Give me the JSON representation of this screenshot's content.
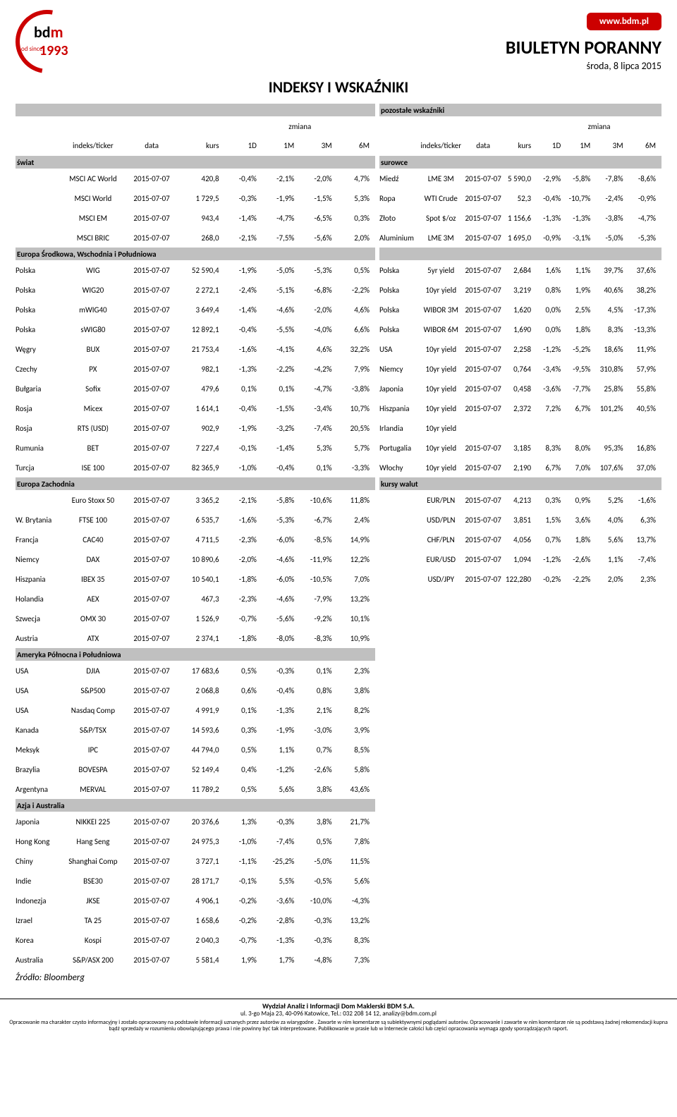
{
  "hdr": {
    "url": "www.bdm.pl",
    "title": "BIULETYN PORANNY",
    "date": "środa, 8 lipca 2015",
    "section": "INDEKSY I WSKAŹNIKI",
    "logo_bdm_b": "bd",
    "logo_bdm_m": "m",
    "logo_od": "od\nsince",
    "logo_year": "1993"
  },
  "cols": {
    "zmiana": "zmiana",
    "c0": "indeks/ticker",
    "c1": "data",
    "c2": "kurs",
    "c3": "1D",
    "c4": "1M",
    "c5": "3M",
    "c6": "6M",
    "r_title": "pozostałe wskaźniki"
  },
  "left_sections": [
    {
      "name": "świat",
      "rows": [
        [
          "",
          "MSCI AC World",
          "2015-07-07",
          "420,8",
          "-0,4%",
          "-2,1%",
          "-2,0%",
          "4,7%"
        ],
        [
          "",
          "MSCI World",
          "2015-07-07",
          "1 729,5",
          "-0,3%",
          "-1,9%",
          "-1,5%",
          "5,3%"
        ],
        [
          "",
          "MSCI EM",
          "2015-07-07",
          "943,4",
          "-1,4%",
          "-4,7%",
          "-6,5%",
          "0,3%"
        ],
        [
          "",
          "MSCI BRIC",
          "2015-07-07",
          "268,0",
          "-2,1%",
          "-7,5%",
          "-5,6%",
          "2,0%"
        ]
      ]
    },
    {
      "name": "Europa Środkowa, Wschodnia i Południowa",
      "rows": [
        [
          "Polska",
          "WIG",
          "2015-07-07",
          "52 590,4",
          "-1,9%",
          "-5,0%",
          "-5,3%",
          "0,5%"
        ],
        [
          "Polska",
          "WIG20",
          "2015-07-07",
          "2 272,1",
          "-2,4%",
          "-5,1%",
          "-6,8%",
          "-2,2%"
        ],
        [
          "Polska",
          "mWIG40",
          "2015-07-07",
          "3 649,4",
          "-1,4%",
          "-4,6%",
          "-2,0%",
          "4,6%"
        ],
        [
          "Polska",
          "sWIG80",
          "2015-07-07",
          "12 892,1",
          "-0,4%",
          "-5,5%",
          "-4,0%",
          "6,6%"
        ],
        [
          "Węgry",
          "BUX",
          "2015-07-07",
          "21 753,4",
          "-1,6%",
          "-4,1%",
          "4,6%",
          "32,2%"
        ],
        [
          "Czechy",
          "PX",
          "2015-07-07",
          "982,1",
          "-1,3%",
          "-2,2%",
          "-4,2%",
          "7,9%"
        ],
        [
          "Bułgaria",
          "Sofix",
          "2015-07-07",
          "479,6",
          "0,1%",
          "0,1%",
          "-4,7%",
          "-3,8%"
        ],
        [
          "Rosja",
          "Micex",
          "2015-07-07",
          "1 614,1",
          "-0,4%",
          "-1,5%",
          "-3,4%",
          "10,7%"
        ],
        [
          "Rosja",
          "RTS (USD)",
          "2015-07-07",
          "902,9",
          "-1,9%",
          "-3,2%",
          "-7,4%",
          "20,5%"
        ],
        [
          "Rumunia",
          "BET",
          "2015-07-07",
          "7 227,4",
          "-0,1%",
          "-1,4%",
          "5,3%",
          "5,7%"
        ],
        [
          "Turcja",
          "ISE 100",
          "2015-07-07",
          "82 365,9",
          "-1,0%",
          "-0,4%",
          "0,1%",
          "-3,3%"
        ]
      ]
    },
    {
      "name": "Europa Zachodnia",
      "rows": [
        [
          "",
          "Euro Stoxx 50",
          "2015-07-07",
          "3 365,2",
          "-2,1%",
          "-5,8%",
          "-10,6%",
          "11,8%"
        ],
        [
          "W. Brytania",
          "FTSE 100",
          "2015-07-07",
          "6 535,7",
          "-1,6%",
          "-5,3%",
          "-6,7%",
          "2,4%"
        ],
        [
          "Francja",
          "CAC40",
          "2015-07-07",
          "4 711,5",
          "-2,3%",
          "-6,0%",
          "-8,5%",
          "14,9%"
        ],
        [
          "Niemcy",
          "DAX",
          "2015-07-07",
          "10 890,6",
          "-2,0%",
          "-4,6%",
          "-11,9%",
          "12,2%"
        ],
        [
          "Hiszpania",
          "IBEX 35",
          "2015-07-07",
          "10 540,1",
          "-1,8%",
          "-6,0%",
          "-10,5%",
          "7,0%"
        ],
        [
          "Holandia",
          "AEX",
          "2015-07-07",
          "467,3",
          "-2,3%",
          "-4,6%",
          "-7,9%",
          "13,2%"
        ],
        [
          "Szwecja",
          "OMX 30",
          "2015-07-07",
          "1 526,9",
          "-0,7%",
          "-5,6%",
          "-9,2%",
          "10,1%"
        ],
        [
          "Austria",
          "ATX",
          "2015-07-07",
          "2 374,1",
          "-1,8%",
          "-8,0%",
          "-8,3%",
          "10,9%"
        ]
      ]
    },
    {
      "name": "Ameryka Północna i Południowa",
      "rows": [
        [
          "USA",
          "DJIA",
          "2015-07-07",
          "17 683,6",
          "0,5%",
          "-0,3%",
          "0,1%",
          "2,3%"
        ],
        [
          "USA",
          "S&P500",
          "2015-07-07",
          "2 068,8",
          "0,6%",
          "-0,4%",
          "0,8%",
          "3,8%"
        ],
        [
          "USA",
          "Nasdaq Comp",
          "2015-07-07",
          "4 991,9",
          "0,1%",
          "-1,3%",
          "2,1%",
          "8,2%"
        ],
        [
          "Kanada",
          "S&P/TSX",
          "2015-07-07",
          "14 593,6",
          "0,3%",
          "-1,9%",
          "-3,0%",
          "3,9%"
        ],
        [
          "Meksyk",
          "IPC",
          "2015-07-07",
          "44 794,0",
          "0,5%",
          "1,1%",
          "0,7%",
          "8,5%"
        ],
        [
          "Brazylia",
          "BOVESPA",
          "2015-07-07",
          "52 149,4",
          "0,4%",
          "-1,2%",
          "-2,6%",
          "5,8%"
        ],
        [
          "Argentyna",
          "MERVAL",
          "2015-07-07",
          "11 789,2",
          "0,5%",
          "5,6%",
          "3,8%",
          "43,6%"
        ]
      ]
    },
    {
      "name": "Azja i Australia",
      "rows": [
        [
          "Japonia",
          "NIKKEI 225",
          "2015-07-07",
          "20 376,6",
          "1,3%",
          "-0,3%",
          "3,8%",
          "21,7%"
        ],
        [
          "Hong Kong",
          "Hang Seng",
          "2015-07-07",
          "24 975,3",
          "-1,0%",
          "-7,4%",
          "0,5%",
          "7,8%"
        ],
        [
          "Chiny",
          "Shanghai Comp",
          "2015-07-07",
          "3 727,1",
          "-1,1%",
          "-25,2%",
          "-5,0%",
          "11,5%"
        ],
        [
          "Indie",
          "BSE30",
          "2015-07-07",
          "28 171,7",
          "-0,1%",
          "5,5%",
          "-0,5%",
          "5,6%"
        ],
        [
          "Indonezja",
          "JKSE",
          "2015-07-07",
          "4 906,1",
          "-0,2%",
          "-3,6%",
          "-10,0%",
          "-4,3%"
        ],
        [
          "Izrael",
          "TA 25",
          "2015-07-07",
          "1 658,6",
          "-0,2%",
          "-2,8%",
          "-0,3%",
          "13,2%"
        ],
        [
          "Korea",
          "Kospi",
          "2015-07-07",
          "2 040,3",
          "-0,7%",
          "-1,3%",
          "-0,3%",
          "8,3%"
        ],
        [
          "Australia",
          "S&P/ASX 200",
          "2015-07-07",
          "5 581,4",
          "1,9%",
          "1,7%",
          "-4,8%",
          "7,3%"
        ]
      ]
    }
  ],
  "right_sections": [
    {
      "name": "surowce",
      "rows": [
        [
          "Miedź",
          "LME 3M",
          "2015-07-07",
          "5 590,0",
          "-2,9%",
          "-5,8%",
          "-7,8%",
          "-8,6%"
        ],
        [
          "Ropa",
          "WTI Crude",
          "2015-07-07",
          "52,3",
          "-0,4%",
          "-10,7%",
          "-2,4%",
          "-0,9%"
        ],
        [
          "Złoto",
          "Spot $/oz",
          "2015-07-07",
          "1 156,6",
          "-1,3%",
          "-1,3%",
          "-3,8%",
          "-4,7%"
        ],
        [
          "Aluminium",
          "LME 3M",
          "2015-07-07",
          "1 695,0",
          "-0,9%",
          "-3,1%",
          "-5,0%",
          "-5,3%"
        ]
      ]
    },
    {
      "name": "",
      "rows": [
        [
          "Polska",
          "5yr yield",
          "2015-07-07",
          "2,684",
          "1,6%",
          "1,1%",
          "39,7%",
          "37,6%"
        ],
        [
          "Polska",
          "10yr yield",
          "2015-07-07",
          "3,219",
          "0,8%",
          "1,9%",
          "40,6%",
          "38,2%"
        ],
        [
          "Polska",
          "WIBOR 3M",
          "2015-07-07",
          "1,620",
          "0,0%",
          "2,5%",
          "4,5%",
          "-17,3%"
        ],
        [
          "Polska",
          "WIBOR 6M",
          "2015-07-07",
          "1,690",
          "0,0%",
          "1,8%",
          "8,3%",
          "-13,3%"
        ],
        [
          "USA",
          "10yr yield",
          "2015-07-07",
          "2,258",
          "-1,2%",
          "-5,2%",
          "18,6%",
          "11,9%"
        ],
        [
          "Niemcy",
          "10yr yield",
          "2015-07-07",
          "0,764",
          "-3,4%",
          "-9,5%",
          "310,8%",
          "57,9%"
        ],
        [
          "Japonia",
          "10yr yield",
          "2015-07-07",
          "0,458",
          "-3,6%",
          "-7,7%",
          "25,8%",
          "55,8%"
        ],
        [
          "Hiszpania",
          "10yr yield",
          "2015-07-07",
          "2,372",
          "7,2%",
          "6,7%",
          "101,2%",
          "40,5%"
        ],
        [
          "Irlandia",
          "10yr yield",
          "",
          "",
          "",
          "",
          "",
          ""
        ],
        [
          "Portugalia",
          "10yr yield",
          "2015-07-07",
          "3,185",
          "8,3%",
          "8,0%",
          "95,3%",
          "16,8%"
        ],
        [
          "Włochy",
          "10yr yield",
          "2015-07-07",
          "2,190",
          "6,7%",
          "7,0%",
          "107,6%",
          "37,0%"
        ]
      ]
    },
    {
      "name": "kursy walut",
      "rows": [
        [
          "",
          "EUR/PLN",
          "2015-07-07",
          "4,213",
          "0,3%",
          "0,9%",
          "5,2%",
          "-1,6%"
        ],
        [
          "",
          "USD/PLN",
          "2015-07-07",
          "3,851",
          "1,5%",
          "3,6%",
          "4,0%",
          "6,3%"
        ],
        [
          "",
          "CHF/PLN",
          "2015-07-07",
          "4,056",
          "0,7%",
          "1,8%",
          "5,6%",
          "13,7%"
        ],
        [
          "",
          "EUR/USD",
          "2015-07-07",
          "1,094",
          "-1,2%",
          "-2,6%",
          "1,1%",
          "-7,4%"
        ],
        [
          "",
          "USD/JPY",
          "2015-07-07",
          "122,280",
          "-0,2%",
          "-2,2%",
          "2,0%",
          "2,3%"
        ]
      ]
    }
  ],
  "source": "Źródło: Bloomberg",
  "footer": {
    "l1": "Wydział Analiz i Informacji Dom Maklerski BDM  S.A.",
    "l2": "ul. 3-go Maja 23, 40-096 Katowice, Tel.: 032 208 14 12, analizy@bdm.com.pl",
    "l3": "Opracowanie ma charakter czysto informacyjny i zostało opracowany na podstawie informacji uznanych przez autorów za wiarygodne . Zawarte w nim komentarze są subiektywnymi poglądami autorów. Opracowanie i zawarte w nim komentarze nie są podstawą żadnej rekomendacji kupna bądź sprzedaży w rozumieniu obowiązującego prawa i nie powinny być tak interpretowane. Publikowanie w prasie lub w Internecie całości lub części opracowania wymaga zgody sporządzających raport."
  },
  "style": {
    "band_bg": "#c0c0c0",
    "accent": "#c00000"
  }
}
